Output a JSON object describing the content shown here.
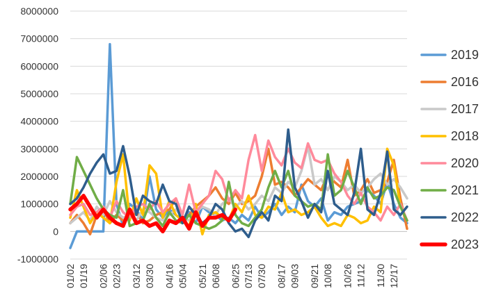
{
  "chart_data": {
    "type": "line",
    "title": "",
    "xlabel": "",
    "ylabel": "",
    "ylim": [
      -1000000,
      8000000
    ],
    "ytick_step": 1000000,
    "yticks": [
      "-1000000",
      "0",
      "1000000",
      "2000000",
      "3000000",
      "4000000",
      "5000000",
      "6000000",
      "7000000",
      "8000000"
    ],
    "grid": "horizontal",
    "legend": "right",
    "x_count": 52,
    "xticks": [
      {
        "index": 0,
        "label": "01/02"
      },
      {
        "index": 2,
        "label": "01/19"
      },
      {
        "index": 5,
        "label": "02/06"
      },
      {
        "index": 7,
        "label": "02/23"
      },
      {
        "index": 10,
        "label": "03/12"
      },
      {
        "index": 12,
        "label": "03/30"
      },
      {
        "index": 15,
        "label": "04/16"
      },
      {
        "index": 17,
        "label": "05/04"
      },
      {
        "index": 20,
        "label": "05/21"
      },
      {
        "index": 22,
        "label": "06/08"
      },
      {
        "index": 25,
        "label": "06/25"
      },
      {
        "index": 27,
        "label": "07/13"
      },
      {
        "index": 29,
        "label": "07/30"
      },
      {
        "index": 32,
        "label": "08/17"
      },
      {
        "index": 34,
        "label": "09/03"
      },
      {
        "index": 37,
        "label": "09/21"
      },
      {
        "index": 39,
        "label": "10/08"
      },
      {
        "index": 42,
        "label": "10/26"
      },
      {
        "index": 44,
        "label": "11/12"
      },
      {
        "index": 47,
        "label": "11/30"
      },
      {
        "index": 49,
        "label": "12/17"
      }
    ],
    "series": [
      {
        "name": "2019",
        "color": "#5B9BD5",
        "width": 3.5,
        "values": [
          -600000,
          0,
          0,
          0,
          0,
          0,
          6800000,
          1000000,
          200000,
          1000000,
          800000,
          400000,
          2000000,
          800000,
          500000,
          800000,
          600000,
          400000,
          700000,
          300000,
          900000,
          700000,
          600000,
          400000,
          500000,
          300000,
          600000,
          400000,
          900000,
          500000,
          700000,
          1000000,
          600000,
          900000,
          700000,
          1700000,
          1100000,
          900000,
          1200000,
          400000,
          700000,
          600000,
          900000,
          1000000,
          1100000,
          1500000,
          1300000,
          1000000,
          1800000,
          1000000,
          500000,
          300000
        ]
      },
      {
        "name": "2016",
        "color": "#ED7D31",
        "width": 3.5,
        "values": [
          300000,
          600000,
          300000,
          -100000,
          600000,
          800000,
          300000,
          600000,
          400000,
          500000,
          700000,
          300000,
          400000,
          600000,
          700000,
          800000,
          1200000,
          500000,
          600000,
          900000,
          1100000,
          1300000,
          1600000,
          1200000,
          1000000,
          1400000,
          1000000,
          1100000,
          1300000,
          2000000,
          3000000,
          1700000,
          1800000,
          1600000,
          1300000,
          1600000,
          1900000,
          1700000,
          1500000,
          2100000,
          1800000,
          1600000,
          2600000,
          1300000,
          1500000,
          1900000,
          1400000,
          1500000,
          1800000,
          2600000,
          1200000,
          100000
        ]
      },
      {
        "name": "2017",
        "color": "#C9C9C9",
        "width": 3.5,
        "values": [
          300000,
          500000,
          700000,
          400000,
          900000,
          600000,
          1100000,
          700000,
          500000,
          600000,
          400000,
          800000,
          700000,
          500000,
          400000,
          600000,
          800000,
          500000,
          400000,
          700000,
          900000,
          800000,
          600000,
          1000000,
          1200000,
          900000,
          1100000,
          800000,
          1000000,
          1300000,
          1100000,
          1600000,
          1400000,
          1800000,
          1600000,
          2200000,
          3100000,
          1700000,
          1900000,
          1500000,
          2000000,
          1800000,
          1500000,
          1700000,
          1400000,
          1600000,
          1900000,
          2100000,
          1700000,
          1900000,
          1600000,
          1200000
        ]
      },
      {
        "name": "2018",
        "color": "#FFC000",
        "width": 3.5,
        "values": [
          500000,
          1500000,
          900000,
          300000,
          700000,
          500000,
          300000,
          1800000,
          2800000,
          400000,
          1200000,
          600000,
          2400000,
          2100000,
          500000,
          1100000,
          600000,
          400000,
          200000,
          1000000,
          -100000,
          600000,
          700000,
          500000,
          400000,
          1000000,
          700000,
          1300000,
          600000,
          500000,
          900000,
          800000,
          1400000,
          700000,
          800000,
          600000,
          700000,
          900000,
          500000,
          200000,
          300000,
          200000,
          600000,
          500000,
          300000,
          400000,
          900000,
          700000,
          3000000,
          2400000,
          900000,
          400000
        ]
      },
      {
        "name": "2020",
        "color": "#FF8A9B",
        "width": 3.5,
        "values": [
          600000,
          900000,
          1000000,
          600000,
          700000,
          900000,
          500000,
          1100000,
          700000,
          500000,
          900000,
          1000000,
          800000,
          1100000,
          700000,
          1000000,
          1200000,
          600000,
          1700000,
          700000,
          1000000,
          1300000,
          2200000,
          1900000,
          1100000,
          1500000,
          1200000,
          2600000,
          3500000,
          2200000,
          3300000,
          2700000,
          2400000,
          3000000,
          2500000,
          2300000,
          3200000,
          2600000,
          2500000,
          2600000,
          2100000,
          1800000,
          1300000,
          1000000,
          1400000,
          900000,
          700000,
          400000,
          900000,
          600000,
          1000000,
          400000
        ]
      },
      {
        "name": "2021",
        "color": "#70AD47",
        "width": 3.5,
        "values": [
          1000000,
          2700000,
          2200000,
          1700000,
          1200000,
          800000,
          600000,
          500000,
          1500000,
          200000,
          300000,
          400000,
          1000000,
          500000,
          200000,
          700000,
          400000,
          300000,
          600000,
          300000,
          200000,
          100000,
          200000,
          400000,
          1800000,
          600000,
          300000,
          200000,
          500000,
          800000,
          1600000,
          2200000,
          1600000,
          2200000,
          1300000,
          1100000,
          900000,
          1000000,
          800000,
          2800000,
          1300000,
          1500000,
          2200000,
          1600000,
          1000000,
          1600000,
          1200000,
          1300000,
          1600000,
          1500000,
          900000,
          400000
        ]
      },
      {
        "name": "2022",
        "color": "#2E5D8C",
        "width": 3.5,
        "values": [
          1000000,
          1200000,
          1600000,
          2100000,
          2500000,
          2800000,
          2100000,
          2200000,
          3100000,
          2000000,
          600000,
          1300000,
          1100000,
          1000000,
          1700000,
          1100000,
          1000000,
          300000,
          900000,
          600000,
          300000,
          500000,
          1000000,
          800000,
          300000,
          0,
          100000,
          -200000,
          400000,
          700000,
          400000,
          1300000,
          1100000,
          3700000,
          1600000,
          1100000,
          500000,
          1000000,
          700000,
          2200000,
          1000000,
          800000,
          600000,
          1400000,
          3000000,
          800000,
          600000,
          1400000,
          2900000,
          800000,
          600000,
          900000
        ]
      },
      {
        "name": "2023",
        "color": "#FF0000",
        "width": 5.5,
        "values": [
          800000,
          1000000,
          1300000,
          900000,
          500000,
          800000,
          500000,
          300000,
          200000,
          800000,
          300000,
          400000,
          200000,
          300000,
          0,
          400000,
          300000,
          500000,
          100000,
          700000,
          200000,
          500000,
          500000,
          600000,
          400000,
          800000
        ]
      }
    ]
  }
}
